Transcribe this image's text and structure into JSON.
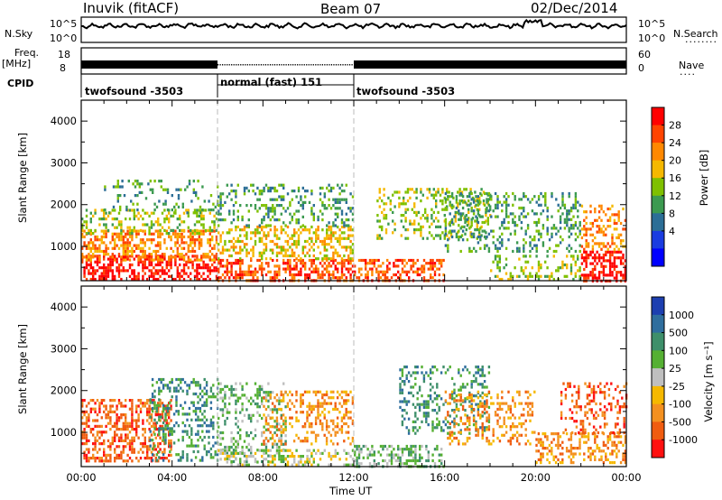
{
  "header": {
    "station": "Inuvik (fitACF)",
    "beam": "Beam 07",
    "date": "02/Dec/2014"
  },
  "top_panels": {
    "nsky_label": "N.Sky",
    "nsky_ticks": [
      "10^5",
      "10^0"
    ],
    "nsearch_label": "N.Search",
    "nsearch_ticks": [
      "10^5",
      "10^0"
    ],
    "freq_label": "Freq.",
    "freq_unit": "[MHz]",
    "freq_ticks": [
      "18",
      "8"
    ],
    "nave_label": "Nave",
    "nave_ticks": [
      "60",
      "0"
    ],
    "cpid_label": "CPID",
    "cpid_segments": [
      {
        "label": "twofsound -3503",
        "start_h": 0,
        "end_h": 6
      },
      {
        "label": "normal (fast) 151",
        "start_h": 6,
        "end_h": 12
      },
      {
        "label": "twofsound -3503",
        "start_h": 12,
        "end_h": 24
      }
    ]
  },
  "power_panel": {
    "ylabel": "Slant Range [km]",
    "cbar_label": "Power [dB]",
    "cbar_ticks": [
      "28",
      "24",
      "20",
      "16",
      "12",
      "8",
      "4"
    ],
    "cbar_colors": [
      "#ff0000",
      "#ff4400",
      "#ff8800",
      "#f5b800",
      "#7fc000",
      "#3c9a50",
      "#2c6e96",
      "#1a3ce0",
      "#0000ff"
    ]
  },
  "velocity_panel": {
    "ylabel": "Slant Range [km]",
    "cbar_label": "Velocity [m s⁻¹]",
    "cbar_ticks": [
      "1000",
      "500",
      "100",
      "25",
      "-25",
      "-100",
      "-500",
      "-1000"
    ],
    "cbar_colors": [
      "#1d3fb0",
      "#2f6e9e",
      "#3e8f6a",
      "#55b033",
      "#bfbfbf",
      "#f5b800",
      "#f39020",
      "#f05c10",
      "#ff1010"
    ]
  },
  "colors": {
    "power": [
      "#0000ff",
      "#1a3ce0",
      "#2c6e96",
      "#3c9a50",
      "#7fc000",
      "#f5b800",
      "#ff8800",
      "#ff4400",
      "#ff0000"
    ],
    "velocity": [
      "#1d3fb0",
      "#2f6e9e",
      "#3e8f6a",
      "#55b033",
      "#bfbfbf",
      "#f5b800",
      "#f39020",
      "#f05c10",
      "#ff1010"
    ]
  },
  "chart_data": {
    "type": "heatmap",
    "xlabel": "Time UT",
    "x_ticks": [
      "00:00",
      "04:00",
      "08:00",
      "12:00",
      "16:00",
      "20:00",
      "00:00"
    ],
    "xlim_hours": [
      0,
      24
    ],
    "ylim_km": [
      180,
      4500
    ],
    "y_ticks": [
      "1000",
      "2000",
      "3000",
      "4000"
    ],
    "y_tick_values": [
      1000,
      2000,
      3000,
      4000
    ],
    "regions_power": [
      {
        "t0": 0,
        "t1": 6,
        "r0": 200,
        "r1": 800,
        "level": 8,
        "density": 0.95
      },
      {
        "t0": 0,
        "t1": 6,
        "r0": 700,
        "r1": 1400,
        "level": 6,
        "density": 0.85
      },
      {
        "t0": 0,
        "t1": 6,
        "r0": 1300,
        "r1": 1900,
        "level": 4,
        "density": 0.6
      },
      {
        "t0": 1,
        "t1": 6,
        "r0": 1800,
        "r1": 2600,
        "level": 3,
        "density": 0.3
      },
      {
        "t0": 6,
        "t1": 12,
        "r0": 200,
        "r1": 700,
        "level": 7,
        "density": 0.9
      },
      {
        "t0": 6,
        "t1": 12,
        "r0": 700,
        "r1": 1500,
        "level": 5,
        "density": 0.75
      },
      {
        "t0": 6,
        "t1": 12,
        "r0": 1500,
        "r1": 2500,
        "level": 3,
        "density": 0.45
      },
      {
        "t0": 12,
        "t1": 16,
        "r0": 200,
        "r1": 700,
        "level": 7,
        "density": 0.8
      },
      {
        "t0": 13,
        "t1": 18,
        "r0": 1200,
        "r1": 2400,
        "level": 4,
        "density": 0.55
      },
      {
        "t0": 16,
        "t1": 22,
        "r0": 900,
        "r1": 2300,
        "level": 3,
        "density": 0.5
      },
      {
        "t0": 18,
        "t1": 22,
        "r0": 200,
        "r1": 800,
        "level": 4,
        "density": 0.5
      },
      {
        "t0": 22,
        "t1": 24,
        "r0": 200,
        "r1": 900,
        "level": 8,
        "density": 0.95
      },
      {
        "t0": 22,
        "t1": 24,
        "r0": 900,
        "r1": 2000,
        "level": 6,
        "density": 0.6
      }
    ],
    "regions_velocity": [
      {
        "t0": 0,
        "t1": 4,
        "r0": 300,
        "r1": 1800,
        "level": 7,
        "density": 0.85
      },
      {
        "t0": 3,
        "t1": 6,
        "r0": 300,
        "r1": 2300,
        "level": 2,
        "density": 0.55
      },
      {
        "t0": 6,
        "t1": 9,
        "r0": 300,
        "r1": 2200,
        "level": 3,
        "density": 0.5
      },
      {
        "t0": 8,
        "t1": 12,
        "r0": 700,
        "r1": 2000,
        "level": 6,
        "density": 0.55
      },
      {
        "t0": 6,
        "t1": 12,
        "r0": 200,
        "r1": 600,
        "level": 4,
        "density": 0.6
      },
      {
        "t0": 12,
        "t1": 16,
        "r0": 200,
        "r1": 700,
        "level": 3,
        "density": 0.7
      },
      {
        "t0": 14,
        "t1": 18,
        "r0": 1000,
        "r1": 2600,
        "level": 2,
        "density": 0.5
      },
      {
        "t0": 16,
        "t1": 20,
        "r0": 700,
        "r1": 2000,
        "level": 6,
        "density": 0.5
      },
      {
        "t0": 20,
        "t1": 24,
        "r0": 300,
        "r1": 1000,
        "level": 6,
        "density": 0.7
      },
      {
        "t0": 21,
        "t1": 24,
        "r0": 1000,
        "r1": 2200,
        "level": 7,
        "density": 0.5
      }
    ]
  }
}
